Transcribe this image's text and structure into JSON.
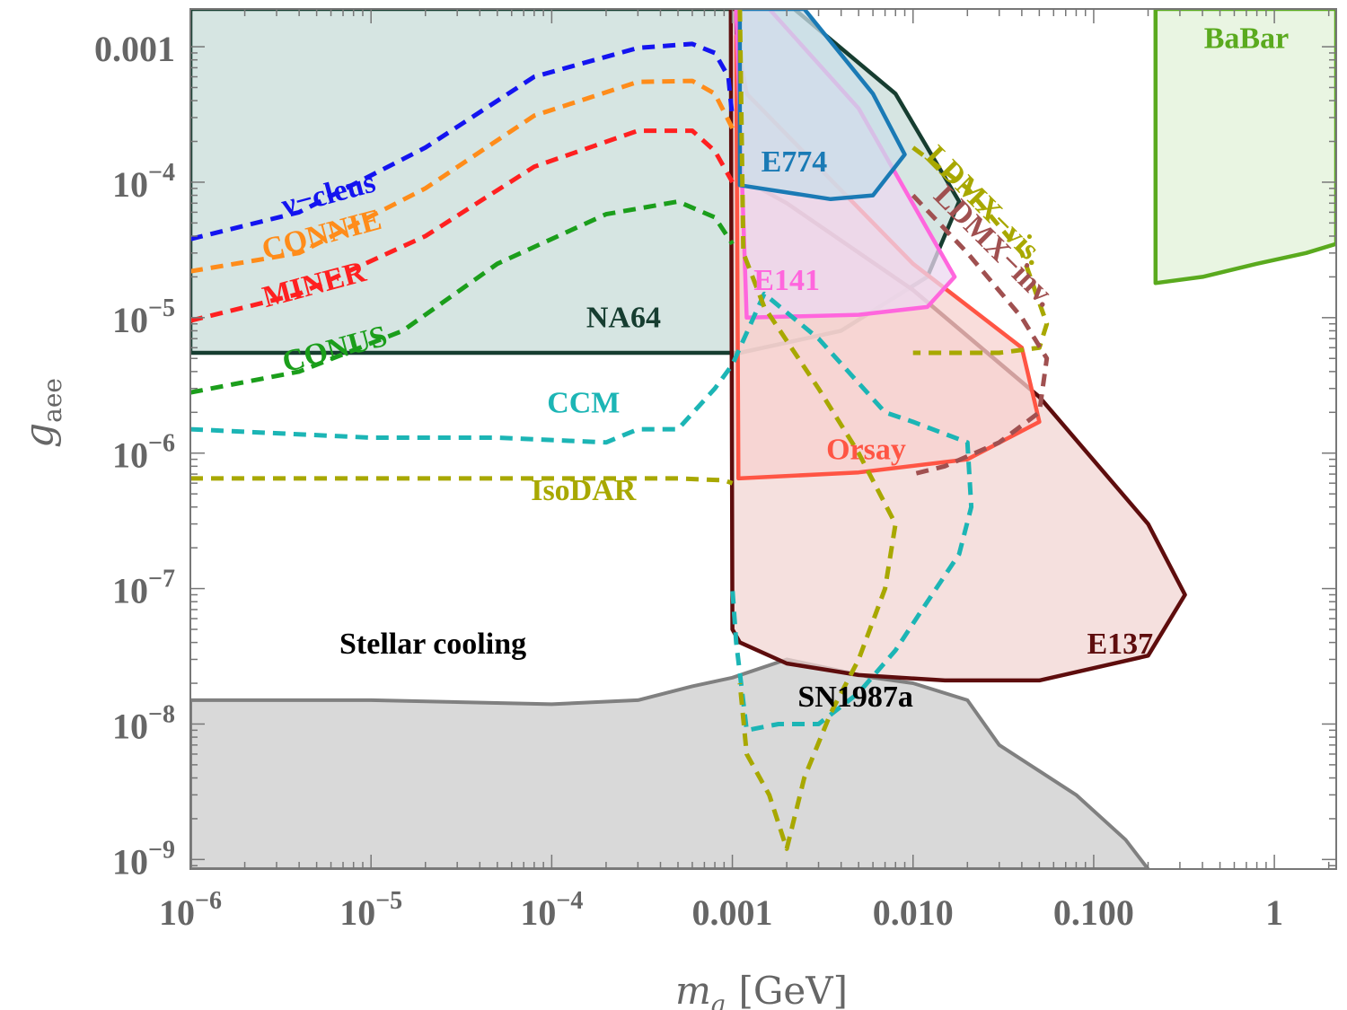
{
  "chart_data": {
    "type": "line",
    "title": "",
    "xlabel": "m_a [GeV]",
    "xlabel_main": "m",
    "xlabel_sub": "a",
    "xlabel_unit": "[GeV]",
    "ylabel": "g_aee",
    "ylabel_main": "g",
    "ylabel_sub": "aee",
    "xscale": "log",
    "yscale": "log",
    "xlim": [
      1e-06,
      2.2
    ],
    "ylim": [
      8.5e-10,
      0.0019
    ],
    "x_ticks": [
      {
        "value": 1e-06,
        "base": "10",
        "exp": "−6"
      },
      {
        "value": 1e-05,
        "base": "10",
        "exp": "−5"
      },
      {
        "value": 0.0001,
        "base": "10",
        "exp": "−4"
      },
      {
        "value": 0.001,
        "text": "0.001"
      },
      {
        "value": 0.01,
        "text": "0.010"
      },
      {
        "value": 0.1,
        "text": "0.100"
      },
      {
        "value": 1,
        "text": "1"
      }
    ],
    "y_ticks": [
      {
        "value": 1e-09,
        "base": "10",
        "exp": "−9"
      },
      {
        "value": 1e-08,
        "base": "10",
        "exp": "−8"
      },
      {
        "value": 1e-07,
        "base": "10",
        "exp": "−7"
      },
      {
        "value": 1e-06,
        "base": "10",
        "exp": "−6"
      },
      {
        "value": 1e-05,
        "base": "10",
        "exp": "−5"
      },
      {
        "value": 0.0001,
        "base": "10",
        "exp": "−4"
      },
      {
        "value": 0.001,
        "text": "0.001"
      }
    ],
    "regions": [
      {
        "name": "Stellar cooling",
        "fill": "#d9d9d9",
        "stroke": "#808080",
        "points": [
          [
            1e-06,
            1.5e-08
          ],
          [
            1e-05,
            1.5e-08
          ],
          [
            0.0001,
            1.4e-08
          ],
          [
            0.0003,
            1.5e-08
          ],
          [
            0.0006,
            1.9e-08
          ],
          [
            0.001,
            2.2e-08
          ],
          [
            0.002,
            3e-08
          ],
          [
            0.006,
            2.2e-08
          ],
          [
            0.01,
            2e-08
          ],
          [
            0.02,
            1.5e-08
          ],
          [
            0.03,
            7e-09
          ],
          [
            0.05,
            4.5e-09
          ],
          [
            0.08,
            3e-09
          ],
          [
            0.15,
            1.4e-09
          ],
          [
            0.2,
            8.5e-10
          ],
          [
            1e-06,
            8.5e-10
          ]
        ]
      },
      {
        "name": "NA64",
        "fill": "#c8dcd8",
        "stroke": "#163d30",
        "points": [
          [
            1e-06,
            0.0019
          ],
          [
            0.0022,
            0.0019
          ],
          [
            0.008,
            0.00045
          ],
          [
            0.018,
            7.2e-05
          ],
          [
            0.012,
            2e-05
          ],
          [
            0.004,
            8e-06
          ],
          [
            0.0011,
            5.5e-06
          ],
          [
            1e-06,
            5.5e-06
          ]
        ]
      },
      {
        "name": "E137",
        "fill": "#f2d6d3",
        "stroke": "#5e0d0d",
        "points": [
          [
            0.00105,
            0.0019
          ],
          [
            0.00108,
            0.00011
          ],
          [
            0.002,
            7e-05
          ],
          [
            0.01,
            1.6e-05
          ],
          [
            0.05,
            2.6e-06
          ],
          [
            0.2,
            3e-07
          ],
          [
            0.32,
            9e-08
          ],
          [
            0.2,
            3.2e-08
          ],
          [
            0.05,
            2.1e-08
          ],
          [
            0.015,
            2.1e-08
          ],
          [
            0.005,
            2.3e-08
          ],
          [
            0.002,
            2.8e-08
          ],
          [
            0.0011,
            4e-08
          ],
          [
            0.001,
            5e-08
          ],
          [
            0.00098,
            0.0019
          ]
        ]
      },
      {
        "name": "Orsay",
        "fill": "#f7d1cf",
        "stroke": "#ff5544",
        "points": [
          [
            0.00105,
            0.0012
          ],
          [
            0.0012,
            0.00045
          ],
          [
            0.01,
            2.5e-05
          ],
          [
            0.04,
            6e-06
          ],
          [
            0.05,
            1.7e-06
          ],
          [
            0.02,
            9e-07
          ],
          [
            0.005,
            7.2e-07
          ],
          [
            0.00108,
            6.5e-07
          ],
          [
            0.00105,
            0.0012
          ]
        ]
      },
      {
        "name": "E141",
        "fill": "#ecd8f0",
        "stroke": "#ff66dd",
        "points": [
          [
            0.00105,
            0.0019
          ],
          [
            0.0016,
            0.0019
          ],
          [
            0.005,
            0.00035
          ],
          [
            0.012,
            4.5e-05
          ],
          [
            0.017,
            2e-05
          ],
          [
            0.012,
            1.2e-05
          ],
          [
            0.005,
            1.05e-05
          ],
          [
            0.0012,
            1e-05
          ],
          [
            0.00105,
            0.0019
          ]
        ]
      },
      {
        "name": "E774",
        "fill": "#c9dde8",
        "stroke": "#1a7ab5",
        "points": [
          [
            0.0011,
            0.0019
          ],
          [
            0.0025,
            0.0019
          ],
          [
            0.006,
            0.00045
          ],
          [
            0.009,
            0.00016
          ],
          [
            0.006,
            8e-05
          ],
          [
            0.0035,
            7.5e-05
          ],
          [
            0.0011,
            9.5e-05
          ],
          [
            0.0011,
            0.0019
          ]
        ]
      },
      {
        "name": "BaBar",
        "fill": "#e2f1d8",
        "stroke": "#5aaa1e",
        "points": [
          [
            0.22,
            0.0019
          ],
          [
            2.2,
            0.0019
          ],
          [
            2.2,
            3.5e-05
          ],
          [
            1.5,
            3e-05
          ],
          [
            0.8,
            2.5e-05
          ],
          [
            0.4,
            2e-05
          ],
          [
            0.22,
            1.8e-05
          ]
        ]
      }
    ],
    "series": [
      {
        "name": "ν−cleus",
        "color": "#1414f0",
        "dash": true,
        "points": [
          [
            1e-06,
            3.8e-05
          ],
          [
            4e-06,
            6e-05
          ],
          [
            2e-05,
            0.00018
          ],
          [
            8e-05,
            0.0006
          ],
          [
            0.0003,
            0.00098
          ],
          [
            0.0006,
            0.00105
          ],
          [
            0.0008,
            0.0009
          ],
          [
            0.00095,
            0.0006
          ],
          [
            0.001,
            0.0003
          ]
        ]
      },
      {
        "name": "CONNIE",
        "color": "#ff8c1a",
        "dash": true,
        "points": [
          [
            1e-06,
            2.2e-05
          ],
          [
            4e-06,
            3e-05
          ],
          [
            2e-05,
            9e-05
          ],
          [
            8e-05,
            0.00031
          ],
          [
            0.0003,
            0.00055
          ],
          [
            0.0006,
            0.00056
          ],
          [
            0.0008,
            0.00045
          ],
          [
            0.001,
            0.00025
          ]
        ]
      },
      {
        "name": "MINER",
        "color": "#ff2020",
        "dash": true,
        "points": [
          [
            1e-06,
            9.5e-06
          ],
          [
            4e-06,
            1.5e-05
          ],
          [
            2e-05,
            4e-05
          ],
          [
            8e-05,
            0.00013
          ],
          [
            0.0003,
            0.00024
          ],
          [
            0.0006,
            0.00024
          ],
          [
            0.0008,
            0.00017
          ],
          [
            0.001,
            0.0001
          ]
        ]
      },
      {
        "name": "CONUS",
        "color": "#1b9e1b",
        "dash": true,
        "points": [
          [
            1e-06,
            2.8e-06
          ],
          [
            4e-06,
            4e-06
          ],
          [
            1.5e-05,
            8e-06
          ],
          [
            5e-05,
            2.5e-05
          ],
          [
            0.0002,
            5.8e-05
          ],
          [
            0.0005,
            7.2e-05
          ],
          [
            0.0008,
            5.5e-05
          ],
          [
            0.001,
            3.5e-05
          ]
        ]
      },
      {
        "name": "CCM",
        "color": "#1cb5b5",
        "dash": true,
        "points": [
          [
            1e-06,
            1.5e-06
          ],
          [
            1e-05,
            1.3e-06
          ],
          [
            5e-05,
            1.3e-06
          ],
          [
            0.0002,
            1.2e-06
          ],
          [
            0.0003,
            1.5e-06
          ],
          [
            0.0005,
            1.5e-06
          ],
          [
            0.0008,
            3e-06
          ],
          [
            0.001,
            4.5e-06
          ],
          [
            0.0015,
            1.5e-05
          ],
          [
            0.003,
            7e-06
          ],
          [
            0.007,
            2e-06
          ],
          [
            0.01,
            1.7e-06
          ],
          [
            0.02,
            1.2e-06
          ],
          [
            0.021,
            4e-07
          ],
          [
            0.018,
            1.8e-07
          ],
          [
            0.012,
            8e-08
          ],
          [
            0.008,
            3.5e-08
          ],
          [
            0.005,
            1.7e-08
          ],
          [
            0.003,
            1e-08
          ],
          [
            0.0018,
            1e-08
          ],
          [
            0.0012,
            9e-09
          ],
          [
            0.00105,
            4e-08
          ],
          [
            0.001,
            1e-07
          ]
        ]
      },
      {
        "name": "IsoDAR",
        "color": "#a8a800",
        "dash": true,
        "points": [
          [
            1e-06,
            6.5e-07
          ],
          [
            0.0001,
            6.5e-07
          ],
          [
            0.0005,
            6.5e-07
          ],
          [
            0.0009,
            6.3e-07
          ],
          [
            0.001,
            6e-07
          ]
        ]
      },
      {
        "name": "SN1987a",
        "color": "#a8a800",
        "dash": true,
        "points": [
          [
            0.0011,
            0.0019
          ],
          [
            0.00115,
            3e-05
          ],
          [
            0.0015,
            1.2e-05
          ],
          [
            0.003,
            3e-06
          ],
          [
            0.005,
            1e-06
          ],
          [
            0.008,
            3e-07
          ],
          [
            0.007,
            1e-07
          ],
          [
            0.005,
            3e-08
          ],
          [
            0.0035,
            1.2e-08
          ],
          [
            0.0025,
            4e-09
          ],
          [
            0.002,
            1.2e-09
          ],
          [
            0.0016,
            3e-09
          ],
          [
            0.0012,
            6e-09
          ],
          [
            0.0011,
            2e-08
          ]
        ]
      },
      {
        "name": "LDMX−vis.",
        "color": "#a8a800",
        "dash": true,
        "points": [
          [
            0.01,
            0.00018
          ],
          [
            0.02,
            9e-05
          ],
          [
            0.04,
            3e-05
          ],
          [
            0.055,
            9e-06
          ],
          [
            0.05,
            6e-06
          ],
          [
            0.03,
            5.5e-06
          ],
          [
            0.01,
            5.5e-06
          ]
        ]
      },
      {
        "name": "LDMX−inv.",
        "color": "#a05050",
        "dash": true,
        "points": [
          [
            0.01,
            8e-05
          ],
          [
            0.02,
            3e-05
          ],
          [
            0.04,
            1e-05
          ],
          [
            0.055,
            5e-06
          ],
          [
            0.05,
            2e-06
          ],
          [
            0.03,
            1.2e-06
          ],
          [
            0.015,
            8e-07
          ],
          [
            0.01,
            7e-07
          ]
        ]
      }
    ],
    "labels": [
      {
        "text": "BaBar",
        "x": 0.7,
        "y": 0.00098,
        "color": "#5aaa1e",
        "rotate": 0
      },
      {
        "text": "E774",
        "x": 0.0022,
        "y": 0.00012,
        "color": "#1a7ab5",
        "rotate": 0
      },
      {
        "text": "ν−cleus",
        "x": 6e-06,
        "y": 7e-05,
        "color": "#1414f0",
        "rotate": -15
      },
      {
        "text": "CONNIE",
        "x": 5.5e-06,
        "y": 3.5e-05,
        "color": "#ff8c1a",
        "rotate": -15
      },
      {
        "text": "MINER",
        "x": 5e-06,
        "y": 1.5e-05,
        "color": "#ff2020",
        "rotate": -15
      },
      {
        "text": "E141",
        "x": 0.002,
        "y": 1.6e-05,
        "color": "#ff66dd",
        "rotate": 0
      },
      {
        "text": "NA64",
        "x": 0.00025,
        "y": 8.5e-06,
        "color": "#163d30",
        "rotate": 0
      },
      {
        "text": "CONUS",
        "x": 6.5e-06,
        "y": 5e-06,
        "color": "#1b9e1b",
        "rotate": -15
      },
      {
        "text": "LDMX−vis.",
        "x": 0.023,
        "y": 6e-05,
        "color": "#a8a800",
        "rotate": 45
      },
      {
        "text": "LDMX−inv.",
        "x": 0.026,
        "y": 3e-05,
        "color": "#a05050",
        "rotate": 45
      },
      {
        "text": "CCM",
        "x": 0.00015,
        "y": 2e-06,
        "color": "#1cb5b5",
        "rotate": 0
      },
      {
        "text": "Orsay",
        "x": 0.0055,
        "y": 9e-07,
        "color": "#ff5544",
        "rotate": 0
      },
      {
        "text": "IsoDAR",
        "x": 0.00015,
        "y": 4.5e-07,
        "color": "#a8a800",
        "rotate": 0
      },
      {
        "text": "E137",
        "x": 0.14,
        "y": 3.3e-08,
        "color": "#5e0d0d",
        "rotate": 0
      },
      {
        "text": "Stellar cooling",
        "x": 2.2e-05,
        "y": 3.3e-08,
        "color": "#000000",
        "rotate": 0
      },
      {
        "text": "SN1987a",
        "x": 0.0048,
        "y": 1.35e-08,
        "color": "#000000",
        "rotate": 0
      }
    ]
  }
}
